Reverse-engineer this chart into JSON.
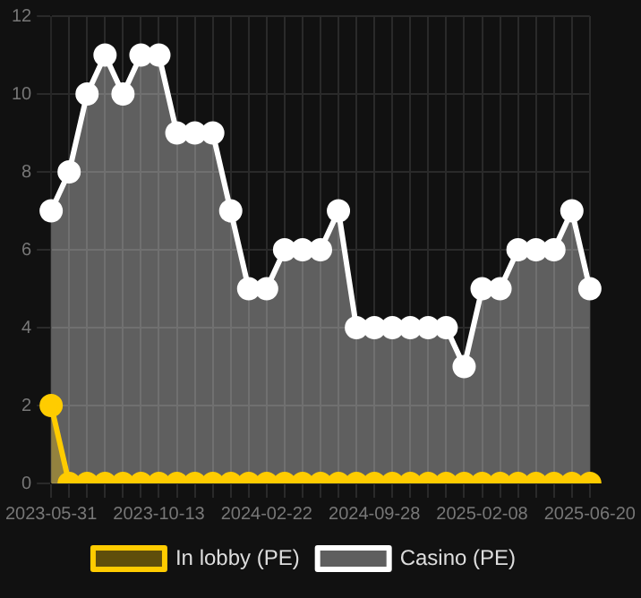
{
  "chart_data": {
    "type": "area",
    "categories": [
      "2023-05-31",
      null,
      null,
      null,
      null,
      null,
      "2023-10-13",
      null,
      null,
      null,
      null,
      null,
      "2024-02-22",
      null,
      null,
      null,
      null,
      null,
      "2024-09-28",
      null,
      null,
      null,
      null,
      null,
      "2025-02-08",
      null,
      null,
      null,
      null,
      null,
      "2025-06-20"
    ],
    "series": [
      {
        "name": "In lobby (PE)",
        "color": "#ffcc00",
        "values": [
          2,
          0,
          0,
          0,
          0,
          0,
          0,
          0,
          0,
          0,
          0,
          0,
          0,
          0,
          0,
          0,
          0,
          0,
          0,
          0,
          0,
          0,
          0,
          0,
          0,
          0,
          0,
          0,
          0,
          0,
          0
        ]
      },
      {
        "name": "Casino (PE)",
        "color": "#ffffff",
        "values": [
          7,
          8,
          10,
          11,
          10,
          11,
          11,
          9,
          9,
          9,
          7,
          5,
          5,
          6,
          6,
          6,
          7,
          4,
          4,
          4,
          4,
          4,
          4,
          3,
          5,
          5,
          6,
          6,
          6,
          7,
          5
        ]
      }
    ],
    "ylim": [
      0,
      12
    ],
    "yticks": [
      0,
      2,
      4,
      6,
      8,
      10,
      12
    ],
    "grid": true,
    "legend": "bottom",
    "marker": "circle"
  }
}
